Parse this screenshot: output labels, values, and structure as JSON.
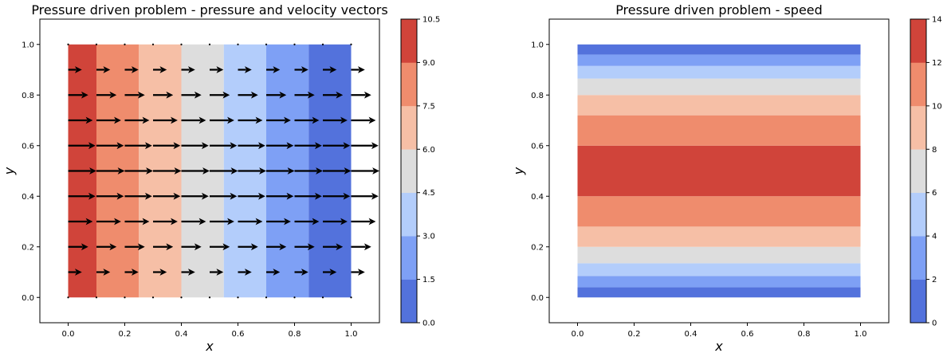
{
  "chart_data": [
    {
      "type": "contour",
      "title": "Pressure driven problem - pressure and velocity vectors",
      "xlabel": "x",
      "ylabel": "y",
      "xlim": [
        -0.1,
        1.1
      ],
      "ylim": [
        -0.1,
        1.1
      ],
      "xticks": [
        "0.0",
        "0.2",
        "0.4",
        "0.6",
        "0.8",
        "1.0"
      ],
      "yticks": [
        "0.0",
        "0.2",
        "0.4",
        "0.6",
        "0.8",
        "1.0"
      ],
      "field": "pressure",
      "field_direction": "x",
      "bands": [
        {
          "from": 0.0,
          "to": 0.1,
          "level": 9.0,
          "color": "#d0443a"
        },
        {
          "from": 0.1,
          "to": 0.25,
          "level": 7.5,
          "color": "#ef8c6d"
        },
        {
          "from": 0.25,
          "to": 0.4,
          "level": 6.0,
          "color": "#f6bfa6"
        },
        {
          "from": 0.4,
          "to": 0.55,
          "level": 4.5,
          "color": "#dddddd"
        },
        {
          "from": 0.55,
          "to": 0.7,
          "level": 3.0,
          "color": "#b3cdfb"
        },
        {
          "from": 0.7,
          "to": 0.85,
          "level": 1.5,
          "color": "#7ea0f5"
        },
        {
          "from": 0.85,
          "to": 1.0,
          "level": 0.0,
          "color": "#5372dc"
        }
      ],
      "vectors": {
        "x": [
          0.0,
          0.1,
          0.2,
          0.3,
          0.4,
          0.5,
          0.6,
          0.7,
          0.8,
          0.9,
          1.0
        ],
        "y": [
          0.0,
          0.1,
          0.2,
          0.3,
          0.4,
          0.5,
          0.6,
          0.7,
          0.8,
          0.9,
          1.0
        ],
        "u": [
          0.0,
          0.09,
          0.16,
          0.21,
          0.24,
          0.25,
          0.24,
          0.21,
          0.16,
          0.09,
          0.0
        ],
        "direction": "+x",
        "color": "#000000"
      },
      "colorbar": {
        "min": 0.0,
        "max": 10.5,
        "ticks": [
          "0.0",
          "1.5",
          "3.0",
          "4.5",
          "6.0",
          "7.5",
          "9.0",
          "10.5"
        ],
        "colors": [
          "#5372dc",
          "#7ea0f5",
          "#b3cdfb",
          "#dddddd",
          "#f6bfa6",
          "#ef8c6d",
          "#d0443a"
        ]
      }
    },
    {
      "type": "contour",
      "title": "Pressure driven problem - speed",
      "xlabel": "x",
      "ylabel": "y",
      "xlim": [
        -0.1,
        1.1
      ],
      "ylim": [
        -0.1,
        1.1
      ],
      "xticks": [
        "0.0",
        "0.2",
        "0.4",
        "0.6",
        "0.8",
        "1.0"
      ],
      "yticks": [
        "0.0",
        "0.2",
        "0.4",
        "0.6",
        "0.8",
        "1.0"
      ],
      "field": "speed",
      "field_direction": "y",
      "bands": [
        {
          "from": 0.0,
          "to": 0.04,
          "level": 0,
          "color": "#5372dc"
        },
        {
          "from": 0.04,
          "to": 0.085,
          "level": 2,
          "color": "#7ea0f5"
        },
        {
          "from": 0.085,
          "to": 0.135,
          "level": 4,
          "color": "#b3cdfb"
        },
        {
          "from": 0.135,
          "to": 0.2,
          "level": 6,
          "color": "#dddddd"
        },
        {
          "from": 0.2,
          "to": 0.28,
          "level": 8,
          "color": "#f6bfa6"
        },
        {
          "from": 0.28,
          "to": 0.4,
          "level": 10,
          "color": "#ef8c6d"
        },
        {
          "from": 0.4,
          "to": 0.6,
          "level": 12,
          "color": "#d0443a"
        },
        {
          "from": 0.6,
          "to": 0.72,
          "level": 10,
          "color": "#ef8c6d"
        },
        {
          "from": 0.72,
          "to": 0.8,
          "level": 8,
          "color": "#f6bfa6"
        },
        {
          "from": 0.8,
          "to": 0.865,
          "level": 6,
          "color": "#dddddd"
        },
        {
          "from": 0.865,
          "to": 0.915,
          "level": 4,
          "color": "#b3cdfb"
        },
        {
          "from": 0.915,
          "to": 0.96,
          "level": 2,
          "color": "#7ea0f5"
        },
        {
          "from": 0.96,
          "to": 1.0,
          "level": 0,
          "color": "#5372dc"
        }
      ],
      "colorbar": {
        "min": 0,
        "max": 14,
        "ticks": [
          "0",
          "2",
          "4",
          "6",
          "8",
          "10",
          "12",
          "14"
        ],
        "colors": [
          "#5372dc",
          "#7ea0f5",
          "#b3cdfb",
          "#dddddd",
          "#f6bfa6",
          "#ef8c6d",
          "#d0443a"
        ]
      }
    }
  ]
}
